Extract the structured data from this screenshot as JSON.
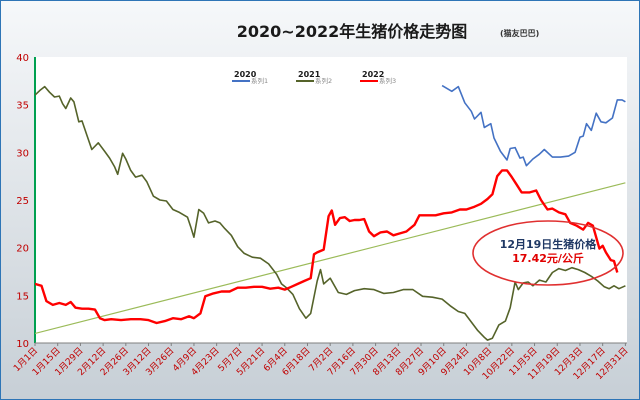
{
  "chart_data": {
    "type": "line",
    "title": "2020~2022年生猪价格走势图",
    "title_note": "(猫友巴巴)",
    "ylim": [
      10,
      40
    ],
    "yticks": [
      10,
      15,
      20,
      25,
      30,
      35,
      40
    ],
    "xlim": [
      1,
      366
    ],
    "xticks": [
      {
        "label": "1月1日",
        "day": 1
      },
      {
        "label": "1月15日",
        "day": 15
      },
      {
        "label": "1月29日",
        "day": 29
      },
      {
        "label": "2月12日",
        "day": 43
      },
      {
        "label": "2月26日",
        "day": 57
      },
      {
        "label": "3月12日",
        "day": 71
      },
      {
        "label": "3月26日",
        "day": 85
      },
      {
        "label": "4月9日",
        "day": 99
      },
      {
        "label": "4月23日",
        "day": 113
      },
      {
        "label": "5月7日",
        "day": 127
      },
      {
        "label": "5月21日",
        "day": 141
      },
      {
        "label": "6月4日",
        "day": 155
      },
      {
        "label": "6月18日",
        "day": 169
      },
      {
        "label": "7月2日",
        "day": 183
      },
      {
        "label": "7月16日",
        "day": 197
      },
      {
        "label": "7月30日",
        "day": 211
      },
      {
        "label": "8月13日",
        "day": 225
      },
      {
        "label": "8月27日",
        "day": 239
      },
      {
        "label": "9月10日",
        "day": 253
      },
      {
        "label": "9月24日",
        "day": 267
      },
      {
        "label": "10月8日",
        "day": 281
      },
      {
        "label": "10月22日",
        "day": 295
      },
      {
        "label": "11月5日",
        "day": 309
      },
      {
        "label": "11月19日",
        "day": 323
      },
      {
        "label": "12月3日",
        "day": 337
      },
      {
        "label": "12月17日",
        "day": 351
      },
      {
        "label": "12月31日",
        "day": 365
      }
    ],
    "grid": false,
    "legend_position": "top-center",
    "series": [
      {
        "name": "2020",
        "sub": "系列1",
        "color": "#4472c4",
        "points": [
          [
            252,
            37
          ],
          [
            258,
            36.4
          ],
          [
            262,
            36.9
          ],
          [
            266,
            35.2
          ],
          [
            270,
            34.3
          ],
          [
            272,
            33.5
          ],
          [
            276,
            34.2
          ],
          [
            278,
            32.6
          ],
          [
            282,
            33
          ],
          [
            284,
            31.5
          ],
          [
            288,
            30.1
          ],
          [
            292,
            29.2
          ],
          [
            294,
            30.4
          ],
          [
            297,
            30.5
          ],
          [
            300,
            29.4
          ],
          [
            302,
            29.5
          ],
          [
            304,
            28.6
          ],
          [
            308,
            29.3
          ],
          [
            312,
            29.8
          ],
          [
            315,
            30.3
          ],
          [
            320,
            29.5
          ],
          [
            325,
            29.5
          ],
          [
            330,
            29.6
          ],
          [
            334,
            30
          ],
          [
            337,
            31.6
          ],
          [
            339,
            31.7
          ],
          [
            341,
            33
          ],
          [
            344,
            32.3
          ],
          [
            347,
            34.1
          ],
          [
            350,
            33.2
          ],
          [
            353,
            33.1
          ],
          [
            357,
            33.6
          ],
          [
            360,
            35.5
          ],
          [
            363,
            35.5
          ],
          [
            365,
            35.3
          ]
        ]
      },
      {
        "name": "2021",
        "sub": "系列2",
        "color": "#55632a",
        "points": [
          [
            1,
            36
          ],
          [
            4,
            36.5
          ],
          [
            7,
            36.9
          ],
          [
            10,
            36.3
          ],
          [
            13,
            35.8
          ],
          [
            16,
            35.9
          ],
          [
            18,
            35.1
          ],
          [
            20,
            34.6
          ],
          [
            23,
            35.7
          ],
          [
            25,
            35.3
          ],
          [
            28,
            33.2
          ],
          [
            30,
            33.3
          ],
          [
            33,
            31.8
          ],
          [
            36,
            30.3
          ],
          [
            40,
            31
          ],
          [
            44,
            30.1
          ],
          [
            47,
            29.4
          ],
          [
            50,
            28.5
          ],
          [
            52,
            27.7
          ],
          [
            55,
            29.9
          ],
          [
            57,
            29.3
          ],
          [
            60,
            28.1
          ],
          [
            63,
            27.4
          ],
          [
            67,
            27.6
          ],
          [
            70,
            26.9
          ],
          [
            74,
            25.4
          ],
          [
            78,
            25
          ],
          [
            82,
            24.9
          ],
          [
            86,
            24
          ],
          [
            90,
            23.7
          ],
          [
            95,
            23.2
          ],
          [
            97,
            22.2
          ],
          [
            99,
            21.1
          ],
          [
            102,
            24
          ],
          [
            105,
            23.6
          ],
          [
            108,
            22.6
          ],
          [
            112,
            22.8
          ],
          [
            115,
            22.6
          ],
          [
            118,
            22
          ],
          [
            122,
            21.3
          ],
          [
            126,
            20.1
          ],
          [
            130,
            19.4
          ],
          [
            135,
            19
          ],
          [
            140,
            18.9
          ],
          [
            145,
            18.3
          ],
          [
            150,
            17.2
          ],
          [
            153,
            16.2
          ],
          [
            156,
            15.8
          ],
          [
            160,
            15.1
          ],
          [
            164,
            13.6
          ],
          [
            168,
            12.6
          ],
          [
            171,
            13.1
          ],
          [
            175,
            16.5
          ],
          [
            177,
            17.7
          ],
          [
            179,
            16.2
          ],
          [
            183,
            16.8
          ],
          [
            188,
            15.3
          ],
          [
            193,
            15.1
          ],
          [
            198,
            15.5
          ],
          [
            204,
            15.7
          ],
          [
            210,
            15.6
          ],
          [
            216,
            15.2
          ],
          [
            222,
            15.3
          ],
          [
            228,
            15.6
          ],
          [
            234,
            15.6
          ],
          [
            240,
            14.9
          ],
          [
            246,
            14.8
          ],
          [
            252,
            14.6
          ],
          [
            257,
            13.9
          ],
          [
            262,
            13.3
          ],
          [
            266,
            13.1
          ],
          [
            270,
            12.2
          ],
          [
            274,
            11.3
          ],
          [
            278,
            10.6
          ],
          [
            280,
            10.3
          ],
          [
            283,
            10.5
          ],
          [
            287,
            11.9
          ],
          [
            291,
            12.3
          ],
          [
            294,
            13.7
          ],
          [
            297,
            16.4
          ],
          [
            299,
            15.6
          ],
          [
            302,
            16.3
          ],
          [
            305,
            16.4
          ],
          [
            308,
            16
          ],
          [
            312,
            16.6
          ],
          [
            316,
            16.4
          ],
          [
            320,
            17.4
          ],
          [
            324,
            17.8
          ],
          [
            328,
            17.6
          ],
          [
            332,
            17.9
          ],
          [
            336,
            17.7
          ],
          [
            340,
            17.4
          ],
          [
            344,
            17
          ],
          [
            348,
            16.5
          ],
          [
            352,
            15.9
          ],
          [
            355,
            15.7
          ],
          [
            358,
            16
          ],
          [
            361,
            15.7
          ],
          [
            365,
            16
          ]
        ]
      },
      {
        "name": "2022",
        "sub": "系列3",
        "color": "#ff0000",
        "points": [
          [
            1,
            16.2
          ],
          [
            5,
            16
          ],
          [
            8,
            14.4
          ],
          [
            12,
            14
          ],
          [
            16,
            14.2
          ],
          [
            20,
            14
          ],
          [
            23,
            14.3
          ],
          [
            26,
            13.7
          ],
          [
            30,
            13.6
          ],
          [
            34,
            13.6
          ],
          [
            38,
            13.5
          ],
          [
            41,
            12.6
          ],
          [
            44,
            12.4
          ],
          [
            48,
            12.5
          ],
          [
            54,
            12.4
          ],
          [
            60,
            12.5
          ],
          [
            66,
            12.5
          ],
          [
            71,
            12.4
          ],
          [
            76,
            12.1
          ],
          [
            81,
            12.3
          ],
          [
            86,
            12.6
          ],
          [
            91,
            12.5
          ],
          [
            96,
            12.8
          ],
          [
            99,
            12.6
          ],
          [
            103,
            13.1
          ],
          [
            106,
            14.9
          ],
          [
            111,
            15.2
          ],
          [
            116,
            15.4
          ],
          [
            121,
            15.4
          ],
          [
            126,
            15.8
          ],
          [
            131,
            15.8
          ],
          [
            136,
            15.9
          ],
          [
            141,
            15.9
          ],
          [
            146,
            15.7
          ],
          [
            151,
            15.8
          ],
          [
            155,
            15.6
          ],
          [
            159,
            15.9
          ],
          [
            163,
            16.2
          ],
          [
            167,
            16.5
          ],
          [
            171,
            16.8
          ],
          [
            173,
            19.3
          ],
          [
            175,
            19.5
          ],
          [
            179,
            19.8
          ],
          [
            182,
            23.3
          ],
          [
            184,
            23.9
          ],
          [
            186,
            22.4
          ],
          [
            189,
            23.1
          ],
          [
            192,
            23.2
          ],
          [
            195,
            22.8
          ],
          [
            198,
            22.9
          ],
          [
            201,
            22.9
          ],
          [
            204,
            23
          ],
          [
            207,
            21.7
          ],
          [
            210,
            21.2
          ],
          [
            214,
            21.6
          ],
          [
            218,
            21.7
          ],
          [
            222,
            21.3
          ],
          [
            226,
            21.5
          ],
          [
            230,
            21.7
          ],
          [
            235,
            22.4
          ],
          [
            238,
            23.4
          ],
          [
            243,
            23.4
          ],
          [
            248,
            23.4
          ],
          [
            253,
            23.6
          ],
          [
            258,
            23.7
          ],
          [
            263,
            24
          ],
          [
            267,
            24
          ],
          [
            272,
            24.3
          ],
          [
            276,
            24.6
          ],
          [
            280,
            25.1
          ],
          [
            283,
            25.6
          ],
          [
            286,
            27.5
          ],
          [
            289,
            28.1
          ],
          [
            292,
            28.1
          ],
          [
            295,
            27.4
          ],
          [
            298,
            26.6
          ],
          [
            301,
            25.8
          ],
          [
            306,
            25.8
          ],
          [
            310,
            26
          ],
          [
            313,
            25
          ],
          [
            317,
            24
          ],
          [
            320,
            24.1
          ],
          [
            324,
            23.7
          ],
          [
            328,
            23.5
          ],
          [
            331,
            22.6
          ],
          [
            335,
            22.3
          ],
          [
            339,
            21.9
          ],
          [
            342,
            22.6
          ],
          [
            345,
            22.3
          ],
          [
            349,
            19.9
          ],
          [
            351,
            20.2
          ],
          [
            353,
            19.5
          ],
          [
            356,
            18.7
          ],
          [
            358,
            18.6
          ],
          [
            360,
            17.4
          ]
        ]
      }
    ],
    "trendline": {
      "color": "#9bbb59",
      "from": [
        1,
        11
      ],
      "to": [
        365,
        26.8
      ]
    },
    "annotation": {
      "line1": "12月19日生猪价格",
      "line2": "17.42元/公斤"
    }
  }
}
